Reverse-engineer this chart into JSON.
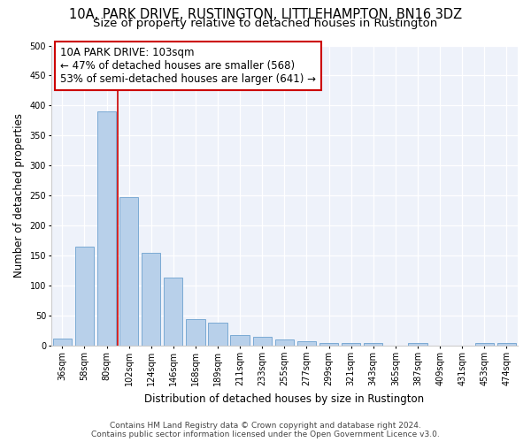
{
  "title1": "10A, PARK DRIVE, RUSTINGTON, LITTLEHAMPTON, BN16 3DZ",
  "title2": "Size of property relative to detached houses in Rustington",
  "xlabel": "Distribution of detached houses by size in Rustington",
  "ylabel": "Number of detached properties",
  "categories": [
    "36sqm",
    "58sqm",
    "80sqm",
    "102sqm",
    "124sqm",
    "146sqm",
    "168sqm",
    "189sqm",
    "211sqm",
    "233sqm",
    "255sqm",
    "277sqm",
    "299sqm",
    "321sqm",
    "343sqm",
    "365sqm",
    "387sqm",
    "409sqm",
    "431sqm",
    "453sqm",
    "474sqm"
  ],
  "values": [
    12,
    165,
    390,
    248,
    155,
    113,
    44,
    39,
    18,
    15,
    10,
    8,
    5,
    4,
    4,
    0,
    4,
    0,
    0,
    4,
    4
  ],
  "bar_color": "#b8d0ea",
  "bar_edge_color": "#7baad4",
  "vline_color": "#cc0000",
  "annotation_line1": "10A PARK DRIVE: 103sqm",
  "annotation_line2": "← 47% of detached houses are smaller (568)",
  "annotation_line3": "53% of semi-detached houses are larger (641) →",
  "annotation_box_color": "#ffffff",
  "annotation_box_edge": "#cc0000",
  "ylim": [
    0,
    500
  ],
  "yticks": [
    0,
    50,
    100,
    150,
    200,
    250,
    300,
    350,
    400,
    450,
    500
  ],
  "background_color": "#eef2fa",
  "footer1": "Contains HM Land Registry data © Crown copyright and database right 2024.",
  "footer2": "Contains public sector information licensed under the Open Government Licence v3.0.",
  "title1_fontsize": 10.5,
  "title2_fontsize": 9.5,
  "xlabel_fontsize": 8.5,
  "ylabel_fontsize": 8.5,
  "tick_fontsize": 7,
  "footer_fontsize": 6.5,
  "annotation_fontsize": 8.5
}
